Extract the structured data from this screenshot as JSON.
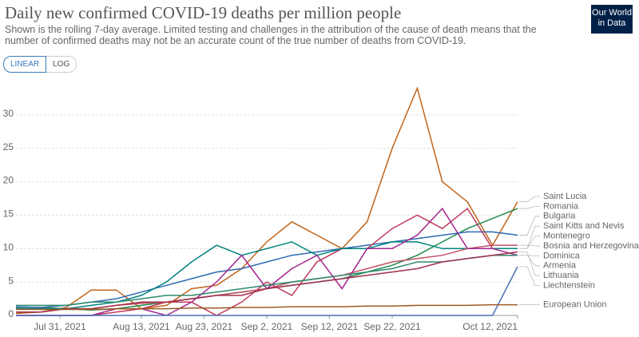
{
  "header": {
    "logo": [
      "Our World",
      "in Data"
    ],
    "buttons": [
      "LINEAR",
      "LOG"
    ]
  },
  "chart_data": {
    "type": "line",
    "title": "Daily new confirmed COVID-19 deaths per million people",
    "subtitle": "Shown is the rolling 7-day average. Limited testing and challenges in the attribution of the cause of death means that the number of confirmed deaths may not be an accurate count of the true number of deaths from COVID-19.",
    "x": [
      "2021-07-24",
      "2021-07-28",
      "2021-08-01",
      "2021-08-05",
      "2021-08-09",
      "2021-08-13",
      "2021-08-17",
      "2021-08-21",
      "2021-08-25",
      "2021-08-29",
      "2021-09-02",
      "2021-09-06",
      "2021-09-10",
      "2021-09-14",
      "2021-09-18",
      "2021-09-22",
      "2021-09-26",
      "2021-09-30",
      "2021-10-04",
      "2021-10-08",
      "2021-10-12"
    ],
    "xlim": [
      "2021-07-24",
      "2021-10-12"
    ],
    "xticks": [
      {
        "value": "2021-07-31",
        "label": "Jul 31, 2021"
      },
      {
        "value": "2021-08-13",
        "label": "Aug 13, 2021"
      },
      {
        "value": "2021-08-23",
        "label": "Aug 23, 2021"
      },
      {
        "value": "2021-09-02",
        "label": "Sep 2, 2021"
      },
      {
        "value": "2021-09-12",
        "label": "Sep 12, 2021"
      },
      {
        "value": "2021-09-22",
        "label": "Sep 22, 2021"
      },
      {
        "value": "2021-10-12",
        "label": "Oct 12, 2021"
      }
    ],
    "ylim": [
      0,
      35
    ],
    "yticks": [
      0,
      5,
      10,
      15,
      20,
      25,
      30
    ],
    "grid": true,
    "series": [
      {
        "name": "Saint Lucia",
        "color": "#c0651c",
        "values": [
          0.3,
          0.5,
          1.2,
          3.8,
          3.8,
          1,
          1.5,
          4,
          4.5,
          7,
          11,
          14,
          12,
          10,
          14,
          25,
          34,
          20,
          17,
          10.5,
          17
        ]
      },
      {
        "name": "Romania",
        "color": "#1f8a4c",
        "values": [
          1.2,
          1.2,
          1,
          0.8,
          1,
          1.5,
          2,
          2.5,
          3,
          3.5,
          4,
          4.5,
          5,
          5.5,
          6.5,
          7.5,
          9,
          11,
          13,
          14.5,
          16
        ]
      },
      {
        "name": "Bulgaria",
        "color": "#2d6ab1",
        "values": [
          1.3,
          1.2,
          1.5,
          2,
          2.5,
          3.5,
          4.5,
          5.5,
          6.5,
          7,
          8,
          9,
          9.5,
          10,
          10.5,
          11,
          11.5,
          12,
          12.5,
          12.5,
          12
        ]
      },
      {
        "name": "Saint Kitts and Nevis",
        "color": "#c0395a",
        "values": [
          0,
          0,
          0,
          0,
          0.5,
          1,
          2,
          2,
          0,
          2,
          5,
          3,
          8,
          10,
          10,
          13,
          15,
          13,
          16,
          10,
          10
        ]
      },
      {
        "name": "Montenegro",
        "color": "#00847e",
        "values": [
          1,
          1,
          1,
          1.5,
          2,
          3,
          5,
          8,
          10.5,
          9,
          10,
          11,
          9,
          10,
          10,
          11,
          11,
          10,
          10,
          10,
          10
        ]
      },
      {
        "name": "Bosnia and Herzegovina",
        "color": "#c25165",
        "values": [
          0.5,
          0.5,
          1,
          1,
          1.5,
          1.8,
          2,
          2.5,
          3,
          3.5,
          4,
          5,
          5.5,
          6,
          7,
          8,
          8.5,
          9,
          10,
          10.5,
          10.5
        ]
      },
      {
        "name": "Dominica",
        "color": "#a2268e",
        "values": [
          0,
          0,
          0,
          0,
          1,
          1,
          0,
          2,
          5,
          9,
          4,
          7,
          9,
          4,
          10,
          10,
          12,
          16,
          10,
          10,
          9
        ]
      },
      {
        "name": "Armenia",
        "color": "#2f8a6e",
        "values": [
          1.5,
          1.5,
          1.5,
          2,
          2,
          2.5,
          3,
          3,
          3.5,
          4,
          4.5,
          5,
          5.5,
          6,
          6.5,
          7,
          8,
          8,
          8.5,
          9,
          9
        ]
      },
      {
        "name": "Lithuania",
        "color": "#a0304e",
        "values": [
          0.5,
          0.5,
          1,
          1,
          1.5,
          2,
          2,
          2.5,
          3,
          3,
          4,
          4.5,
          5,
          5.5,
          6,
          6.5,
          7,
          8,
          8.5,
          9,
          9.5
        ]
      },
      {
        "name": "Liechtenstein",
        "color": "#4b70b5",
        "values": [
          0,
          0,
          0,
          0,
          0,
          0,
          0,
          0,
          0,
          0,
          0,
          0,
          0,
          0,
          0,
          0,
          0,
          0,
          0,
          0,
          7.3
        ]
      },
      {
        "name": "European Union",
        "color": "#9b5b25",
        "values": [
          0.9,
          0.9,
          0.9,
          0.9,
          1,
          1,
          1,
          1.1,
          1.1,
          1.2,
          1.2,
          1.3,
          1.3,
          1.3,
          1.4,
          1.4,
          1.5,
          1.5,
          1.5,
          1.6,
          1.6
        ]
      }
    ]
  }
}
